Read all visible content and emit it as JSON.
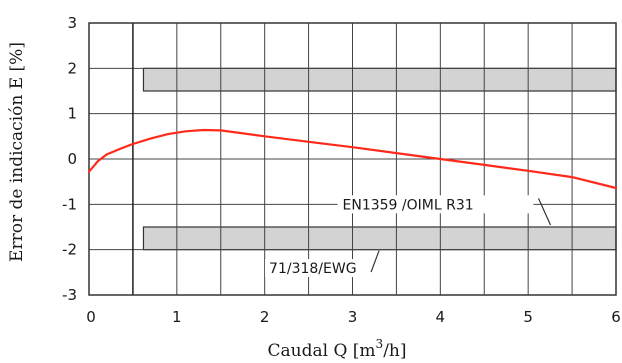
{
  "chart_data": {
    "type": "line",
    "xlabel": "Caudal Q  [m³/h]",
    "xlabel_parts": {
      "prefix": "Caudal Q  [m",
      "sup": "3",
      "suffix": "/h]"
    },
    "ylabel": "Error de indicación E [%]",
    "xlim": [
      0,
      6
    ],
    "ylim": [
      -3,
      3
    ],
    "x_ticks": [
      {
        "value": 0,
        "label": "0"
      },
      {
        "value": 1,
        "label": "1"
      },
      {
        "value": 2,
        "label": "2"
      },
      {
        "value": 3,
        "label": "3"
      },
      {
        "value": 4,
        "label": "4"
      },
      {
        "value": 5,
        "label": "5"
      },
      {
        "value": 6,
        "label": "6"
      }
    ],
    "y_ticks": [
      {
        "value": 3,
        "label": "3"
      },
      {
        "value": 2,
        "label": "2"
      },
      {
        "value": 1,
        "label": "1"
      },
      {
        "value": 0,
        "label": "0"
      },
      {
        "value": -1,
        "label": "-1"
      },
      {
        "value": -2,
        "label": "-2"
      },
      {
        "value": -3,
        "label": "-3"
      }
    ],
    "grid": true,
    "x_grid_step": 0.5,
    "y_grid_step": 1,
    "vertical_line_x": 0.5,
    "series": [
      {
        "color": "#ff2a1a",
        "x": [
          0.0,
          0.1,
          0.2,
          0.35,
          0.5,
          0.7,
          0.9,
          1.1,
          1.3,
          1.5,
          2.0,
          2.5,
          3.0,
          3.5,
          4.0,
          4.5,
          5.0,
          5.5,
          6.0
        ],
        "y": [
          -0.28,
          -0.05,
          0.1,
          0.22,
          0.33,
          0.45,
          0.55,
          0.61,
          0.64,
          0.63,
          0.5,
          0.38,
          0.26,
          0.13,
          0.0,
          -0.13,
          -0.26,
          -0.4,
          -0.64
        ]
      }
    ],
    "bands": [
      {
        "x_start": 0.62,
        "x_end": 6.0,
        "y_low": 1.5,
        "y_high": 2.0,
        "color": "#d3d3d3"
      },
      {
        "x_start": 0.62,
        "x_end": 6.0,
        "y_low": -2.0,
        "y_high": -1.5,
        "color": "#d3d3d3"
      }
    ],
    "annotations": [
      {
        "text": "EN1359 /OIML R31"
      },
      {
        "text": "71/318/EWG"
      }
    ]
  }
}
